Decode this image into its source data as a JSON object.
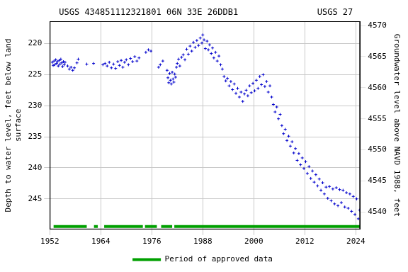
{
  "chart_data": {
    "type": "scatter",
    "title": "USGS 434851112321801 06N 33E 26DDB1",
    "annotations": [
      "USGS 27"
    ],
    "ylabel": [
      "Depth to water level, feet below land",
      "surface"
    ],
    "y2label": "Groundwater level above NAVD 1988, feet",
    "xlim": [
      1952,
      2025
    ],
    "xticks": [
      1952,
      1964,
      1976,
      1988,
      2000,
      2012,
      2024
    ],
    "ylim": [
      249.9,
      216.4
    ],
    "yticks": [
      220,
      225,
      230,
      235,
      240,
      245
    ],
    "y2lim": [
      4537.2,
      4570.7
    ],
    "y2ticks": [
      4540,
      4545,
      4550,
      4555,
      4560,
      4565,
      4570
    ],
    "grid": true,
    "legend": "bottom",
    "x": [
      1952.6,
      1952.8,
      1953.0,
      1953.2,
      1953.4,
      1953.6,
      1953.8,
      1954.0,
      1954.2,
      1954.4,
      1954.6,
      1954.8,
      1955.0,
      1955.2,
      1955.4,
      1955.6,
      1956.2,
      1956.6,
      1957.0,
      1957.4,
      1957.8,
      1958.4,
      1958.7,
      1960.7,
      1962.3,
      1964.5,
      1965.0,
      1965.5,
      1966.0,
      1966.5,
      1967.0,
      1967.5,
      1968.0,
      1968.4,
      1968.8,
      1969.2,
      1969.6,
      1970.0,
      1970.5,
      1971.0,
      1971.5,
      1972.0,
      1972.5,
      1973.0,
      1974.6,
      1975.2,
      1975.8,
      1977.6,
      1978.0,
      1978.6,
      1979.6,
      1979.8,
      1980.0,
      1980.2,
      1980.4,
      1980.6,
      1980.8,
      1981.0,
      1981.2,
      1981.4,
      1981.6,
      1981.8,
      1982.0,
      1982.3,
      1982.6,
      1983.0,
      1983.4,
      1983.8,
      1984.2,
      1984.6,
      1985.0,
      1985.4,
      1985.8,
      1986.2,
      1986.6,
      1987.0,
      1987.4,
      1987.8,
      1988.0,
      1988.3,
      1988.6,
      1989.0,
      1989.3,
      1989.6,
      1990.0,
      1990.3,
      1990.6,
      1991.0,
      1991.4,
      1991.8,
      1992.2,
      1992.6,
      1993.0,
      1993.4,
      1993.8,
      1994.2,
      1994.6,
      1995.0,
      1995.4,
      1995.8,
      1996.2,
      1996.6,
      1997.0,
      1997.4,
      1997.8,
      1998.2,
      1998.6,
      1999.0,
      1999.4,
      1999.8,
      2000.2,
      2000.6,
      2001.0,
      2001.4,
      2001.8,
      2002.2,
      2002.6,
      2003.0,
      2003.4,
      2003.8,
      2004.2,
      2004.6,
      2005.0,
      2005.4,
      2005.8,
      2006.2,
      2006.6,
      2007.0,
      2007.4,
      2007.8,
      2008.2,
      2008.6,
      2009.0,
      2009.4,
      2009.8,
      2010.2,
      2010.6,
      2011.0,
      2011.4,
      2011.8,
      2012.2,
      2012.6,
      2013.0,
      2013.4,
      2013.8,
      2014.2,
      2014.6,
      2015.0,
      2015.4,
      2015.8,
      2016.2,
      2016.6,
      2017.0,
      2017.4,
      2017.8,
      2018.2,
      2018.6,
      2019.0,
      2019.4,
      2019.8,
      2020.2,
      2020.6,
      2021.0,
      2021.4,
      2021.8,
      2022.2,
      2022.6,
      2023.0,
      2023.4,
      2023.8,
      2024.2,
      2024.6,
      2024.9
    ],
    "series": [
      {
        "color": "#0000cc",
        "marker": "plus",
        "values": [
          223.0,
          223.5,
          222.8,
          223.4,
          222.6,
          223.2,
          222.9,
          223.6,
          222.7,
          223.3,
          222.5,
          223.1,
          223.7,
          222.9,
          223.4,
          223.0,
          223.6,
          224.1,
          223.8,
          224.3,
          223.9,
          223.1,
          222.5,
          223.3,
          223.2,
          223.4,
          223.2,
          223.6,
          223.0,
          223.9,
          223.3,
          224.0,
          222.9,
          223.5,
          222.7,
          223.8,
          223.0,
          222.6,
          223.4,
          222.4,
          222.9,
          222.1,
          222.8,
          222.3,
          221.4,
          221.0,
          221.2,
          223.8,
          223.4,
          222.8,
          224.3,
          225.5,
          226.3,
          224.8,
          225.9,
          226.5,
          224.6,
          225.7,
          226.2,
          224.9,
          225.4,
          223.8,
          223.2,
          222.5,
          223.6,
          222.2,
          221.8,
          222.6,
          220.9,
          221.7,
          220.4,
          221.2,
          219.8,
          220.6,
          219.5,
          220.3,
          219.1,
          219.9,
          218.6,
          219.4,
          220.8,
          219.6,
          221.0,
          220.2,
          221.6,
          220.7,
          222.3,
          221.4,
          222.8,
          222.0,
          223.4,
          224.1,
          225.3,
          226.0,
          225.6,
          226.8,
          226.1,
          227.4,
          226.5,
          228.0,
          227.2,
          228.6,
          227.8,
          229.3,
          228.1,
          227.5,
          228.4,
          226.8,
          227.9,
          226.4,
          227.6,
          225.9,
          227.2,
          225.3,
          226.6,
          225.0,
          226.9,
          226.1,
          227.8,
          226.8,
          228.6,
          229.8,
          231.0,
          230.2,
          232.1,
          231.4,
          233.2,
          234.5,
          233.8,
          235.6,
          234.9,
          236.5,
          235.8,
          237.6,
          236.9,
          238.8,
          237.7,
          239.5,
          238.4,
          240.1,
          239.0,
          240.9,
          239.8,
          241.7,
          240.5,
          242.3,
          241.1,
          242.9,
          241.8,
          243.6,
          242.4,
          244.2,
          243.1,
          244.9,
          243.0,
          245.3,
          243.4,
          245.8,
          243.2,
          246.1,
          243.5,
          245.6,
          243.6,
          246.3,
          244.0,
          246.5,
          244.2,
          247.0,
          244.6,
          247.5,
          245.0,
          248.2,
          246.8
        ]
      }
    ],
    "approved_periods": {
      "name": "Period of approved data",
      "color": "#00a000",
      "periods": [
        [
          1952.9,
          1960.7
        ],
        [
          1962.4,
          1963.3
        ],
        [
          1964.8,
          1973.9
        ],
        [
          1974.4,
          1977.2
        ],
        [
          1978.2,
          1980.8
        ],
        [
          1981.3,
          2025.0
        ]
      ]
    }
  }
}
